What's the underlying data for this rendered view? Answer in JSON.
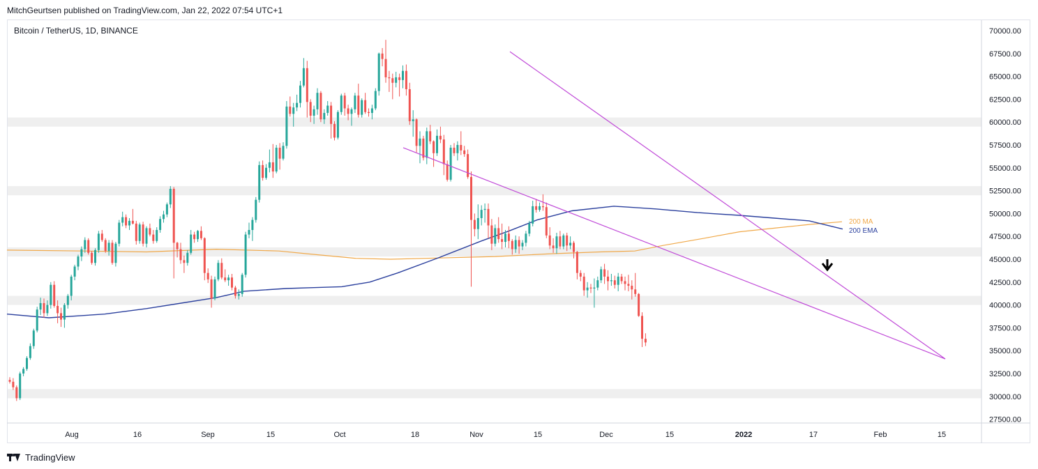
{
  "header": {
    "published_text": "MitchGeurtsen published on TradingView.com, Jan 22, 2022 07:54 UTC+1",
    "symbol_text": "Bitcoin / TetherUS, 1D, BINANCE"
  },
  "footer": {
    "brand": "TradingView",
    "logo_icon": "tradingview-logo-icon"
  },
  "chart_data": {
    "type": "candlestick",
    "symbol": "Bitcoin / TetherUS",
    "interval": "1D",
    "exchange": "BINANCE",
    "y_axis": {
      "ylim": [
        26500,
        71000
      ],
      "ticks": [
        "70000.00",
        "67500.00",
        "65000.00",
        "62500.00",
        "60000.00",
        "57500.00",
        "55000.00",
        "52500.00",
        "50000.00",
        "47500.00",
        "45000.00",
        "42500.00",
        "40000.00",
        "37500.00",
        "35000.00",
        "32500.00",
        "30000.00",
        "27500.00"
      ]
    },
    "x_axis": {
      "ticks": [
        {
          "label": "Aug",
          "bold": false
        },
        {
          "label": "16",
          "bold": false
        },
        {
          "label": "Sep",
          "bold": false
        },
        {
          "label": "15",
          "bold": false
        },
        {
          "label": "Oct",
          "bold": false
        },
        {
          "label": "18",
          "bold": false
        },
        {
          "label": "Nov",
          "bold": false
        },
        {
          "label": "15",
          "bold": false
        },
        {
          "label": "Dec",
          "bold": false
        },
        {
          "label": "15",
          "bold": false
        },
        {
          "label": "2022",
          "bold": true
        },
        {
          "label": "17",
          "bold": false
        },
        {
          "label": "Feb",
          "bold": false
        },
        {
          "label": "15",
          "bold": false
        }
      ]
    },
    "colors": {
      "up": "#26a69a",
      "down": "#ef5350",
      "ma200": "#f0a848",
      "ema200": "#2a3f9d",
      "trendline": "#c04ad8",
      "zone": "#efefef",
      "arrow": "#000000"
    },
    "zones": [
      {
        "from": 59500,
        "to": 60500
      },
      {
        "from": 52000,
        "to": 53000
      },
      {
        "from": 45300,
        "to": 46300
      },
      {
        "from": 40000,
        "to": 41000
      },
      {
        "from": 29800,
        "to": 30800
      }
    ],
    "candles": [
      [
        31800,
        32100,
        31400,
        31600
      ],
      [
        31600,
        32000,
        30700,
        31000
      ],
      [
        31000,
        31200,
        29500,
        29800
      ],
      [
        29800,
        32700,
        29600,
        32500
      ],
      [
        32500,
        33200,
        32200,
        33000
      ],
      [
        33000,
        34400,
        32800,
        34200
      ],
      [
        34200,
        35800,
        34000,
        35500
      ],
      [
        35500,
        37400,
        35200,
        37200
      ],
      [
        37200,
        39800,
        37000,
        39500
      ],
      [
        39500,
        40800,
        38900,
        40200
      ],
      [
        40200,
        40700,
        38600,
        39100
      ],
      [
        39100,
        40500,
        38800,
        40000
      ],
      [
        40000,
        42500,
        39600,
        42200
      ],
      [
        42200,
        42600,
        39700,
        39900
      ],
      [
        39900,
        40500,
        38000,
        39100
      ],
      [
        39100,
        39700,
        37600,
        38400
      ],
      [
        38400,
        40200,
        37500,
        40000
      ],
      [
        40000,
        41200,
        39600,
        41000
      ],
      [
        41000,
        43300,
        40500,
        43100
      ],
      [
        43100,
        44400,
        42700,
        44200
      ],
      [
        44200,
        45500,
        43800,
        45300
      ],
      [
        45300,
        46400,
        44800,
        46100
      ],
      [
        46100,
        47400,
        45700,
        47100
      ],
      [
        47100,
        47300,
        45500,
        45700
      ],
      [
        45700,
        45900,
        44400,
        44600
      ],
      [
        44600,
        46200,
        44300,
        46000
      ],
      [
        46000,
        48100,
        45700,
        47800
      ],
      [
        47800,
        48200,
        46900,
        47100
      ],
      [
        47100,
        47300,
        45700,
        45900
      ],
      [
        45900,
        47100,
        45400,
        46800
      ],
      [
        46800,
        47100,
        44400,
        44600
      ],
      [
        44600,
        46900,
        44200,
        46700
      ],
      [
        46700,
        49300,
        46400,
        49000
      ],
      [
        49000,
        50200,
        48600,
        49600
      ],
      [
        49600,
        49900,
        48400,
        48700
      ],
      [
        48700,
        49500,
        48200,
        49200
      ],
      [
        49200,
        50500,
        48800,
        48900
      ],
      [
        48900,
        49200,
        46600,
        47000
      ],
      [
        47000,
        49000,
        46700,
        48800
      ],
      [
        48800,
        49100,
        46400,
        46700
      ],
      [
        46700,
        48600,
        46300,
        48400
      ],
      [
        48400,
        48900,
        47500,
        47700
      ],
      [
        47700,
        48200,
        46700,
        47000
      ],
      [
        47000,
        48500,
        46800,
        48200
      ],
      [
        48200,
        49700,
        47900,
        49400
      ],
      [
        49400,
        50300,
        49000,
        49900
      ],
      [
        49900,
        51200,
        49600,
        51000
      ],
      [
        51000,
        53000,
        50600,
        52700
      ],
      [
        52700,
        52900,
        42900,
        46800
      ],
      [
        46800,
        46900,
        45200,
        46100
      ],
      [
        46100,
        46800,
        44500,
        44900
      ],
      [
        44900,
        45400,
        43500,
        44600
      ],
      [
        44600,
        46000,
        44300,
        45700
      ],
      [
        45700,
        48200,
        45500,
        47700
      ],
      [
        47700,
        48000,
        46800,
        47200
      ],
      [
        47200,
        48200,
        46900,
        48100
      ],
      [
        48100,
        48600,
        47100,
        47300
      ],
      [
        47300,
        47400,
        42700,
        43500
      ],
      [
        43500,
        44000,
        42400,
        42800
      ],
      [
        42800,
        43200,
        39700,
        40700
      ],
      [
        40700,
        43100,
        40500,
        42800
      ],
      [
        42800,
        44900,
        42600,
        44600
      ],
      [
        44600,
        45100,
        42800,
        43000
      ],
      [
        43000,
        43900,
        42500,
        42700
      ],
      [
        42700,
        43300,
        42100,
        43000
      ],
      [
        43000,
        43400,
        41600,
        41900
      ],
      [
        41900,
        42100,
        40700,
        41000
      ],
      [
        41000,
        41700,
        40600,
        41200
      ],
      [
        41200,
        43500,
        40900,
        43300
      ],
      [
        43300,
        48000,
        43000,
        47700
      ],
      [
        47700,
        49000,
        47300,
        48200
      ],
      [
        48200,
        49600,
        47000,
        49300
      ],
      [
        49300,
        51800,
        49000,
        51500
      ],
      [
        51500,
        55700,
        51200,
        55300
      ],
      [
        55300,
        55800,
        53600,
        53900
      ],
      [
        53900,
        55400,
        53700,
        55000
      ],
      [
        55000,
        57000,
        54500,
        55600
      ],
      [
        55600,
        57600,
        53900,
        54600
      ],
      [
        54600,
        57500,
        54400,
        57200
      ],
      [
        57200,
        57700,
        54800,
        56000
      ],
      [
        56000,
        57800,
        55800,
        57400
      ],
      [
        57400,
        62300,
        57100,
        61700
      ],
      [
        61700,
        62800,
        60600,
        60900
      ],
      [
        60900,
        62100,
        59500,
        61600
      ],
      [
        61600,
        63000,
        61200,
        62100
      ],
      [
        62100,
        64500,
        61600,
        64000
      ],
      [
        64000,
        67000,
        63800,
        65900
      ],
      [
        65900,
        66700,
        60500,
        62200
      ],
      [
        62200,
        62500,
        60000,
        60700
      ],
      [
        60700,
        61800,
        59800,
        61400
      ],
      [
        61400,
        63700,
        60800,
        63200
      ],
      [
        63200,
        63400,
        60000,
        60300
      ],
      [
        60300,
        61400,
        59800,
        61000
      ],
      [
        61000,
        62300,
        60700,
        61800
      ],
      [
        61800,
        62200,
        58200,
        59800
      ],
      [
        59800,
        60100,
        58000,
        58300
      ],
      [
        58300,
        61300,
        58100,
        61100
      ],
      [
        61100,
        63100,
        60800,
        62900
      ],
      [
        62900,
        63200,
        60700,
        61500
      ],
      [
        61500,
        61900,
        60200,
        60900
      ],
      [
        60900,
        61600,
        59600,
        61400
      ],
      [
        61400,
        63200,
        61000,
        62900
      ],
      [
        62900,
        64200,
        60500,
        60800
      ],
      [
        60800,
        62600,
        60500,
        62400
      ],
      [
        62400,
        63200,
        60900,
        61100
      ],
      [
        61100,
        61500,
        60600,
        61000
      ],
      [
        61000,
        61900,
        60300,
        61500
      ],
      [
        61500,
        63700,
        61300,
        63400
      ],
      [
        63400,
        67600,
        62900,
        67500
      ],
      [
        67500,
        68100,
        66100,
        66900
      ],
      [
        66900,
        69000,
        64300,
        64900
      ],
      [
        64900,
        65600,
        63300,
        64800
      ],
      [
        64800,
        65300,
        62500,
        64300
      ],
      [
        64300,
        65500,
        63800,
        64900
      ],
      [
        64900,
        65300,
        62800,
        64600
      ],
      [
        64600,
        66200,
        63700,
        65600
      ],
      [
        65600,
        66300,
        62900,
        63600
      ],
      [
        63600,
        64300,
        59700,
        60100
      ],
      [
        60100,
        61300,
        58400,
        60300
      ],
      [
        60300,
        60400,
        56700,
        57400
      ],
      [
        57400,
        59000,
        55500,
        58200
      ],
      [
        58200,
        58500,
        55800,
        56100
      ],
      [
        56100,
        59400,
        55400,
        59000
      ],
      [
        59000,
        59700,
        57600,
        57900
      ],
      [
        57900,
        58000,
        55100,
        56600
      ],
      [
        56600,
        59200,
        56300,
        58500
      ],
      [
        58500,
        59500,
        57700,
        58100
      ],
      [
        58100,
        58600,
        54200,
        55400
      ],
      [
        55400,
        55800,
        53500,
        53700
      ],
      [
        53700,
        57500,
        53500,
        57200
      ],
      [
        57200,
        57700,
        56300,
        56600
      ],
      [
        56600,
        57900,
        55800,
        57500
      ],
      [
        57500,
        59000,
        56400,
        56900
      ],
      [
        56900,
        57400,
        56200,
        56500
      ],
      [
        56500,
        57000,
        53800,
        54000
      ],
      [
        54000,
        54600,
        42000,
        49300
      ],
      [
        49300,
        50000,
        47500,
        48300
      ],
      [
        48300,
        51000,
        47200,
        49500
      ],
      [
        49500,
        50900,
        48700,
        50400
      ],
      [
        50400,
        51100,
        49000,
        50500
      ],
      [
        50500,
        51100,
        47300,
        48700
      ],
      [
        48700,
        49400,
        46000,
        46700
      ],
      [
        46700,
        48800,
        46400,
        48400
      ],
      [
        48400,
        49600,
        46800,
        47200
      ],
      [
        47200,
        48900,
        46100,
        46900
      ],
      [
        46900,
        48200,
        46300,
        47800
      ],
      [
        47800,
        48600,
        46200,
        47000
      ],
      [
        47000,
        47200,
        45500,
        46100
      ],
      [
        46100,
        47600,
        45700,
        47100
      ],
      [
        47100,
        47500,
        45600,
        46400
      ],
      [
        46400,
        47100,
        46000,
        46800
      ],
      [
        46800,
        48100,
        46400,
        47800
      ],
      [
        47800,
        49200,
        47500,
        48900
      ],
      [
        48900,
        51400,
        48600,
        50800
      ],
      [
        50800,
        51600,
        50100,
        50400
      ],
      [
        50400,
        51200,
        50200,
        50800
      ],
      [
        50800,
        52100,
        50300,
        50700
      ],
      [
        50700,
        51200,
        47300,
        47600
      ],
      [
        47600,
        48500,
        46100,
        46500
      ],
      [
        46500,
        47300,
        45700,
        46200
      ],
      [
        46200,
        47900,
        45600,
        47500
      ],
      [
        47500,
        48100,
        46100,
        46400
      ],
      [
        46400,
        47800,
        46100,
        47600
      ],
      [
        47600,
        47900,
        45900,
        46500
      ],
      [
        46500,
        47500,
        46100,
        46800
      ],
      [
        46800,
        47000,
        45100,
        45800
      ],
      [
        45800,
        45900,
        42800,
        43500
      ],
      [
        43500,
        43800,
        42600,
        43100
      ],
      [
        43100,
        43500,
        41000,
        41600
      ],
      [
        41600,
        42500,
        40800,
        41900
      ],
      [
        41900,
        42300,
        41300,
        41800
      ],
      [
        41800,
        42900,
        39700,
        41900
      ],
      [
        41900,
        43100,
        41600,
        42700
      ],
      [
        42700,
        44200,
        42400,
        43900
      ],
      [
        43900,
        44500,
        42300,
        43100
      ],
      [
        43100,
        43800,
        41600,
        42600
      ],
      [
        42600,
        43400,
        42100,
        42700
      ],
      [
        42700,
        43200,
        41800,
        42200
      ],
      [
        42200,
        43500,
        41500,
        43100
      ],
      [
        43100,
        43400,
        42300,
        42600
      ],
      [
        42600,
        43100,
        41600,
        42300
      ],
      [
        42300,
        43300,
        41500,
        42100
      ],
      [
        42100,
        42700,
        40600,
        41700
      ],
      [
        41700,
        43500,
        40900,
        41200
      ],
      [
        41200,
        41300,
        38700,
        38800
      ],
      [
        38800,
        39200,
        35400,
        36300
      ],
      [
        36300,
        36900,
        35500,
        35900
      ]
    ],
    "ma200": [
      [
        0,
        46000
      ],
      [
        110,
        45900
      ],
      [
        200,
        45800
      ],
      [
        300,
        46100
      ],
      [
        390,
        45900
      ],
      [
        430,
        45600
      ],
      [
        500,
        45100
      ],
      [
        550,
        45000
      ],
      [
        600,
        45100
      ],
      [
        700,
        45300
      ],
      [
        780,
        45600
      ],
      [
        850,
        45800
      ],
      [
        900,
        45900
      ],
      [
        940,
        46500
      ],
      [
        1000,
        47300
      ],
      [
        1050,
        48000
      ],
      [
        1100,
        48400
      ],
      [
        1150,
        48800
      ],
      [
        1197,
        49100
      ]
    ],
    "ema200": [
      [
        0,
        39000
      ],
      [
        60,
        38600
      ],
      [
        140,
        39000
      ],
      [
        200,
        39600
      ],
      [
        300,
        40800
      ],
      [
        340,
        41500
      ],
      [
        400,
        41800
      ],
      [
        440,
        41900
      ],
      [
        480,
        42000
      ],
      [
        520,
        42500
      ],
      [
        560,
        43500
      ],
      [
        620,
        45200
      ],
      [
        680,
        47000
      ],
      [
        720,
        48100
      ],
      [
        760,
        49300
      ],
      [
        810,
        50300
      ],
      [
        870,
        50800
      ],
      [
        930,
        50500
      ],
      [
        990,
        50100
      ],
      [
        1050,
        49800
      ],
      [
        1100,
        49500
      ],
      [
        1150,
        49200
      ],
      [
        1198,
        48300
      ]
    ],
    "trendlines": [
      {
        "from": [
          731,
          67700
        ],
        "to": [
          1355,
          34100
        ]
      },
      {
        "from": [
          578,
          57200
        ],
        "to": [
          1355,
          34100
        ]
      }
    ],
    "line_labels": [
      {
        "text": "200 MA",
        "color": "#f0a848",
        "y": 49200
      },
      {
        "text": "200 EMA",
        "color": "#2a3f9d",
        "y": 48200
      }
    ],
    "annotations": {
      "arrow": {
        "x": 1186,
        "direction": "down"
      }
    }
  }
}
